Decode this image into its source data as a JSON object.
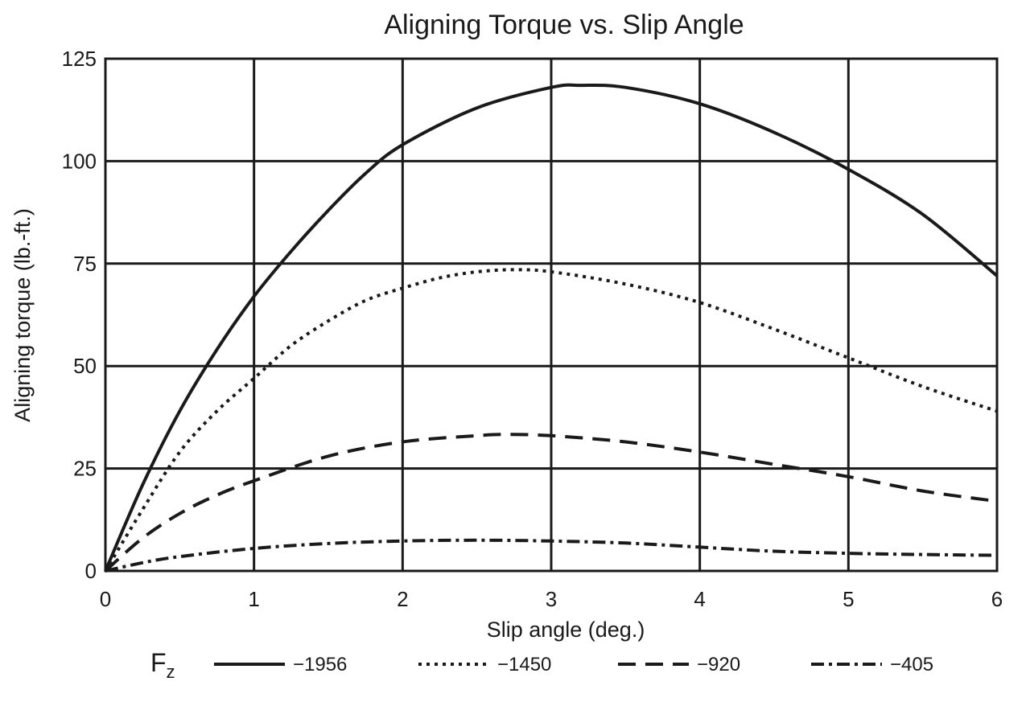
{
  "chart_data": {
    "type": "line",
    "title": "Aligning Torque vs. Slip Angle",
    "xlabel": "Slip angle (deg.)",
    "ylabel": "Aligning torque (lb.-ft.)",
    "xlim": [
      0,
      6
    ],
    "ylim": [
      0,
      125
    ],
    "xticks": [
      "0",
      "1",
      "2",
      "3",
      "4",
      "5",
      "6"
    ],
    "yticks": [
      "0",
      "25",
      "50",
      "75",
      "100",
      "125"
    ],
    "grid": true,
    "legend": {
      "title": "F",
      "title_subscript": "z",
      "placement": "bottom"
    },
    "series": [
      {
        "name": "−1956",
        "style": "solid",
        "x": [
          0,
          0.25,
          0.5,
          0.75,
          1,
          1.25,
          1.5,
          1.75,
          2,
          2.5,
          3,
          3.2,
          3.5,
          4,
          4.5,
          5,
          5.5,
          6
        ],
        "y": [
          0,
          21,
          39,
          54,
          67,
          78,
          88,
          97,
          104,
          113,
          118,
          118.5,
          118,
          114,
          107,
          98,
          87,
          72
        ]
      },
      {
        "name": "−1450",
        "style": "dotted",
        "x": [
          0,
          0.25,
          0.5,
          0.75,
          1,
          1.25,
          1.5,
          1.75,
          2,
          2.25,
          2.5,
          2.75,
          3,
          3.5,
          4,
          4.5,
          5,
          5.5,
          6
        ],
        "y": [
          0,
          15,
          29,
          39,
          47,
          55,
          61,
          66,
          69,
          71.5,
          73,
          73.5,
          73,
          70,
          65.5,
          59,
          52,
          45,
          39
        ]
      },
      {
        "name": "−920",
        "style": "dashed",
        "x": [
          0,
          0.25,
          0.5,
          0.75,
          1,
          1.5,
          2,
          2.5,
          2.7,
          3,
          3.5,
          4,
          4.5,
          5,
          5.5,
          6
        ],
        "y": [
          0,
          8,
          14,
          18.5,
          22,
          28,
          31.5,
          33,
          33.3,
          33,
          31.5,
          29,
          26,
          23,
          19.5,
          17
        ]
      },
      {
        "name": "−405",
        "style": "dash-dot",
        "x": [
          0,
          0.25,
          0.5,
          1,
          1.5,
          2,
          2.5,
          3,
          3.5,
          4,
          4.5,
          5,
          5.5,
          6
        ],
        "y": [
          0,
          2,
          3.5,
          5.5,
          6.7,
          7.3,
          7.5,
          7.3,
          6.8,
          5.8,
          4.8,
          4.3,
          4,
          3.8
        ]
      }
    ]
  }
}
